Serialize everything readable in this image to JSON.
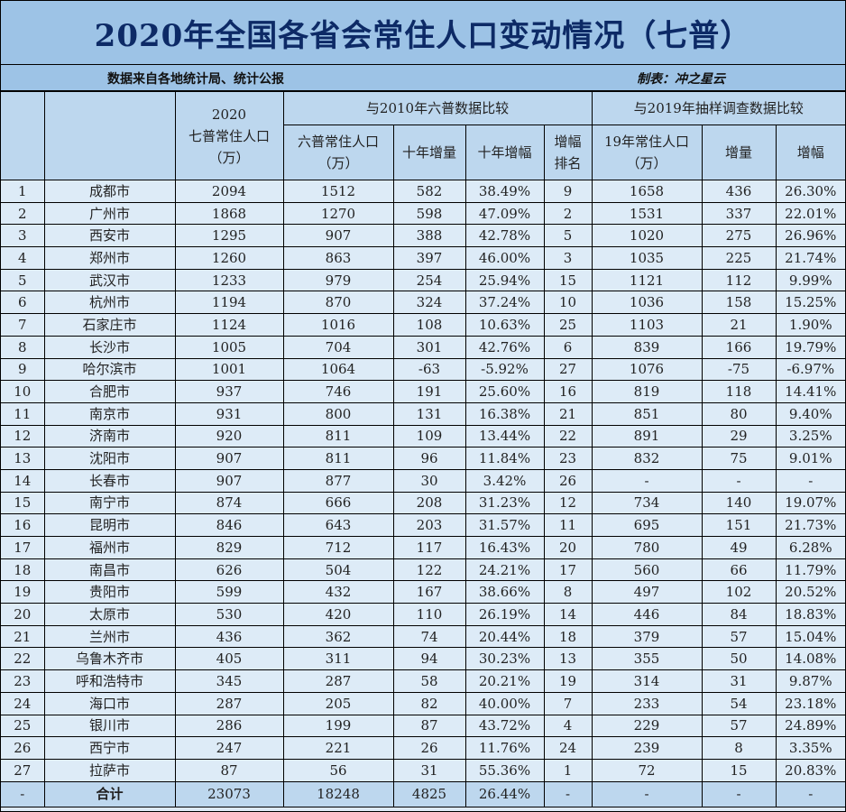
{
  "title": "2020年全国各省会常住人口变动情况（七普）",
  "subtitle": {
    "source": "数据来自各地统计局、统计公报",
    "author": "制表：冲之星云"
  },
  "header": {
    "col_2020_year": "2020",
    "col_2020_name": "七普常住人口",
    "col_2020_unit": "（万）",
    "group_2010": "与2010年六普数据比较",
    "group_2019": "与2019年抽样调查数据比较",
    "col_6th_name": "六普常住人口",
    "col_6th_unit": "（万）",
    "col_10y_increase": "十年增量",
    "col_10y_rate": "十年增幅",
    "col_rank_line1": "增幅",
    "col_rank_line2": "排名",
    "col_2019_name": "19年常住人口",
    "col_2019_unit": "（万）",
    "col_2019_increase": "增量",
    "col_2019_rate": "增幅"
  },
  "rows": [
    {
      "no": "1",
      "city": "成都市",
      "pop2020": "2094",
      "pop2010": "1512",
      "inc10": "582",
      "rate10": "38.49%",
      "rank": "9",
      "pop2019": "1658",
      "inc19": "436",
      "rate19": "26.30%"
    },
    {
      "no": "2",
      "city": "广州市",
      "pop2020": "1868",
      "pop2010": "1270",
      "inc10": "598",
      "rate10": "47.09%",
      "rank": "2",
      "pop2019": "1531",
      "inc19": "337",
      "rate19": "22.01%"
    },
    {
      "no": "3",
      "city": "西安市",
      "pop2020": "1295",
      "pop2010": "907",
      "inc10": "388",
      "rate10": "42.78%",
      "rank": "5",
      "pop2019": "1020",
      "inc19": "275",
      "rate19": "26.96%"
    },
    {
      "no": "4",
      "city": "郑州市",
      "pop2020": "1260",
      "pop2010": "863",
      "inc10": "397",
      "rate10": "46.00%",
      "rank": "3",
      "pop2019": "1035",
      "inc19": "225",
      "rate19": "21.74%"
    },
    {
      "no": "5",
      "city": "武汉市",
      "pop2020": "1233",
      "pop2010": "979",
      "inc10": "254",
      "rate10": "25.94%",
      "rank": "15",
      "pop2019": "1121",
      "inc19": "112",
      "rate19": "9.99%"
    },
    {
      "no": "6",
      "city": "杭州市",
      "pop2020": "1194",
      "pop2010": "870",
      "inc10": "324",
      "rate10": "37.24%",
      "rank": "10",
      "pop2019": "1036",
      "inc19": "158",
      "rate19": "15.25%"
    },
    {
      "no": "7",
      "city": "石家庄市",
      "pop2020": "1124",
      "pop2010": "1016",
      "inc10": "108",
      "rate10": "10.63%",
      "rank": "25",
      "pop2019": "1103",
      "inc19": "21",
      "rate19": "1.90%"
    },
    {
      "no": "8",
      "city": "长沙市",
      "pop2020": "1005",
      "pop2010": "704",
      "inc10": "301",
      "rate10": "42.76%",
      "rank": "6",
      "pop2019": "839",
      "inc19": "166",
      "rate19": "19.79%"
    },
    {
      "no": "9",
      "city": "哈尔滨市",
      "pop2020": "1001",
      "pop2010": "1064",
      "inc10": "-63",
      "rate10": "-5.92%",
      "rank": "27",
      "pop2019": "1076",
      "inc19": "-75",
      "rate19": "-6.97%"
    },
    {
      "no": "10",
      "city": "合肥市",
      "pop2020": "937",
      "pop2010": "746",
      "inc10": "191",
      "rate10": "25.60%",
      "rank": "16",
      "pop2019": "819",
      "inc19": "118",
      "rate19": "14.41%"
    },
    {
      "no": "11",
      "city": "南京市",
      "pop2020": "931",
      "pop2010": "800",
      "inc10": "131",
      "rate10": "16.38%",
      "rank": "21",
      "pop2019": "851",
      "inc19": "80",
      "rate19": "9.40%"
    },
    {
      "no": "12",
      "city": "济南市",
      "pop2020": "920",
      "pop2010": "811",
      "inc10": "109",
      "rate10": "13.44%",
      "rank": "22",
      "pop2019": "891",
      "inc19": "29",
      "rate19": "3.25%"
    },
    {
      "no": "13",
      "city": "沈阳市",
      "pop2020": "907",
      "pop2010": "811",
      "inc10": "96",
      "rate10": "11.84%",
      "rank": "23",
      "pop2019": "832",
      "inc19": "75",
      "rate19": "9.01%"
    },
    {
      "no": "14",
      "city": "长春市",
      "pop2020": "907",
      "pop2010": "877",
      "inc10": "30",
      "rate10": "3.42%",
      "rank": "26",
      "pop2019": "-",
      "inc19": "-",
      "rate19": "-"
    },
    {
      "no": "15",
      "city": "南宁市",
      "pop2020": "874",
      "pop2010": "666",
      "inc10": "208",
      "rate10": "31.23%",
      "rank": "12",
      "pop2019": "734",
      "inc19": "140",
      "rate19": "19.07%"
    },
    {
      "no": "16",
      "city": "昆明市",
      "pop2020": "846",
      "pop2010": "643",
      "inc10": "203",
      "rate10": "31.57%",
      "rank": "11",
      "pop2019": "695",
      "inc19": "151",
      "rate19": "21.73%"
    },
    {
      "no": "17",
      "city": "福州市",
      "pop2020": "829",
      "pop2010": "712",
      "inc10": "117",
      "rate10": "16.43%",
      "rank": "20",
      "pop2019": "780",
      "inc19": "49",
      "rate19": "6.28%"
    },
    {
      "no": "18",
      "city": "南昌市",
      "pop2020": "626",
      "pop2010": "504",
      "inc10": "122",
      "rate10": "24.21%",
      "rank": "17",
      "pop2019": "560",
      "inc19": "66",
      "rate19": "11.79%"
    },
    {
      "no": "19",
      "city": "贵阳市",
      "pop2020": "599",
      "pop2010": "432",
      "inc10": "167",
      "rate10": "38.66%",
      "rank": "8",
      "pop2019": "497",
      "inc19": "102",
      "rate19": "20.52%"
    },
    {
      "no": "20",
      "city": "太原市",
      "pop2020": "530",
      "pop2010": "420",
      "inc10": "110",
      "rate10": "26.19%",
      "rank": "14",
      "pop2019": "446",
      "inc19": "84",
      "rate19": "18.83%"
    },
    {
      "no": "21",
      "city": "兰州市",
      "pop2020": "436",
      "pop2010": "362",
      "inc10": "74",
      "rate10": "20.44%",
      "rank": "18",
      "pop2019": "379",
      "inc19": "57",
      "rate19": "15.04%"
    },
    {
      "no": "22",
      "city": "乌鲁木齐市",
      "pop2020": "405",
      "pop2010": "311",
      "inc10": "94",
      "rate10": "30.23%",
      "rank": "13",
      "pop2019": "355",
      "inc19": "50",
      "rate19": "14.08%"
    },
    {
      "no": "23",
      "city": "呼和浩特市",
      "pop2020": "345",
      "pop2010": "287",
      "inc10": "58",
      "rate10": "20.21%",
      "rank": "19",
      "pop2019": "314",
      "inc19": "31",
      "rate19": "9.87%"
    },
    {
      "no": "24",
      "city": "海口市",
      "pop2020": "287",
      "pop2010": "205",
      "inc10": "82",
      "rate10": "40.00%",
      "rank": "7",
      "pop2019": "233",
      "inc19": "54",
      "rate19": "23.18%"
    },
    {
      "no": "25",
      "city": "银川市",
      "pop2020": "286",
      "pop2010": "199",
      "inc10": "87",
      "rate10": "43.72%",
      "rank": "4",
      "pop2019": "229",
      "inc19": "57",
      "rate19": "24.89%"
    },
    {
      "no": "26",
      "city": "西宁市",
      "pop2020": "247",
      "pop2010": "221",
      "inc10": "26",
      "rate10": "11.76%",
      "rank": "24",
      "pop2019": "239",
      "inc19": "8",
      "rate19": "3.35%"
    },
    {
      "no": "27",
      "city": "拉萨市",
      "pop2020": "87",
      "pop2010": "56",
      "inc10": "31",
      "rate10": "55.36%",
      "rank": "1",
      "pop2019": "72",
      "inc19": "15",
      "rate19": "20.83%"
    }
  ],
  "total": {
    "no": "-",
    "city": "合计",
    "pop2020": "23073",
    "pop2010": "18248",
    "inc10": "4825",
    "rate10": "26.44%",
    "rank": "-",
    "pop2019": "-",
    "inc19": "-",
    "rate19": "-"
  },
  "colors": {
    "title_bg": "#9dc3e6",
    "title_text": "#0d2a66",
    "header_bg": "#bdd7ee",
    "row_bg": "#ddebf7",
    "border": "#000000"
  }
}
